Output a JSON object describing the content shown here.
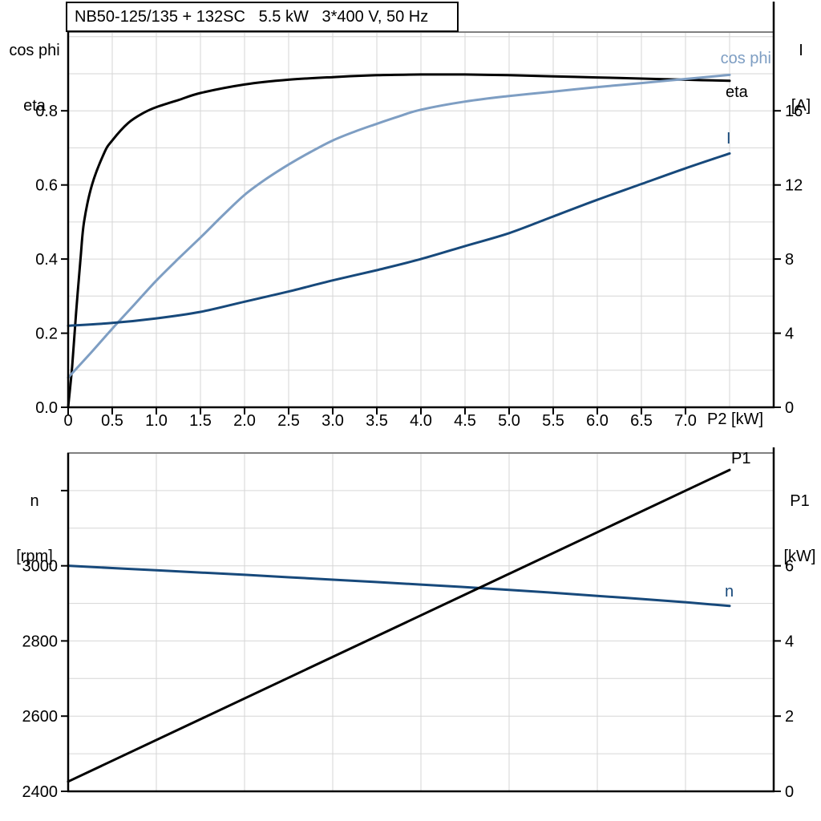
{
  "title": "NB50-125/135 + 132SC   5.5 kW   3*400 V, 50 Hz",
  "x_axis_label": "P2 [kW]",
  "colors": {
    "black": "#000000",
    "light_blue": "#7e9ec3",
    "dark_blue": "#17497b",
    "grid": "#d6d6d6",
    "frame_gray": "#808080",
    "text": "#000000",
    "background": "#ffffff"
  },
  "axis_titles": {
    "top_left_1": "cos phi",
    "top_left_2": "eta",
    "top_right_1": "I",
    "top_right_2": "[A]",
    "bottom_left_1": "n",
    "bottom_left_2": "[rpm]",
    "bottom_right_1": "P1",
    "bottom_right_2": "[kW]"
  },
  "curve_labels": {
    "cos_phi": "cos phi",
    "eta": "eta",
    "current": "I",
    "p1": "P1",
    "n": "n"
  },
  "chart_data": [
    {
      "type": "line",
      "title": "NB50-125/135 + 132SC   5.5 kW   3*400 V, 50 Hz",
      "xlabel": "P2 [kW]",
      "xlim": [
        0,
        8
      ],
      "ylim_left": [
        0,
        1.0125
      ],
      "ylim_right": [
        0,
        20.25
      ],
      "grid": true,
      "grid_x": [
        0.5,
        1,
        1.5,
        2,
        2.5,
        3,
        3.5,
        4,
        4.5,
        5,
        5.5,
        6,
        6.5,
        7,
        7.5
      ],
      "grid_y_left": [
        0.1,
        0.2,
        0.3,
        0.4,
        0.5,
        0.6,
        0.7,
        0.8,
        0.9,
        1.0
      ],
      "x_ticks": {
        "values": [
          0,
          0.5,
          1,
          1.5,
          2,
          2.5,
          3,
          3.5,
          4,
          4.5,
          5,
          5.5,
          6,
          6.5,
          7
        ],
        "labels": [
          "0",
          "0.5",
          "1.0",
          "1.5",
          "2.0",
          "2.5",
          "3.0",
          "3.5",
          "4.0",
          "4.5",
          "5.0",
          "5.5",
          "6.0",
          "6.5",
          "7.0"
        ]
      },
      "y_left_ticks": {
        "values": [
          0,
          0.2,
          0.4,
          0.6,
          0.8
        ],
        "labels": [
          "0.0",
          "0.2",
          "0.4",
          "0.6",
          "0.8"
        ],
        "extra_unlabeled": []
      },
      "y_right_ticks": {
        "values": [
          0,
          4,
          8,
          12,
          16
        ],
        "labels": [
          "0",
          "4",
          "8",
          "12",
          "16"
        ],
        "extra_unlabeled": []
      },
      "series": [
        {
          "key": "eta",
          "name": "eta",
          "axis": "left",
          "color": "black",
          "x": [
            0,
            0.045,
            0.09,
            0.14,
            0.18,
            0.27,
            0.41,
            0.5,
            0.68,
            0.86,
            1.0,
            1.25,
            1.5,
            2.0,
            2.5,
            3.0,
            3.5,
            4.0,
            4.5,
            5.0,
            5.5,
            6.0,
            6.5,
            7.0,
            7.5
          ],
          "y": [
            0,
            0.11,
            0.255,
            0.4,
            0.5,
            0.6,
            0.687,
            0.72,
            0.767,
            0.795,
            0.81,
            0.829,
            0.848,
            0.871,
            0.884,
            0.891,
            0.896,
            0.898,
            0.898,
            0.896,
            0.893,
            0.89,
            0.887,
            0.884,
            0.881
          ]
        },
        {
          "key": "cos-phi",
          "name": "cos phi",
          "axis": "left",
          "color": "light_blue",
          "x": [
            0,
            0.25,
            0.5,
            0.75,
            1.0,
            1.25,
            1.5,
            1.75,
            2.0,
            2.25,
            2.5,
            2.75,
            3.0,
            3.25,
            3.5,
            3.75,
            4.0,
            4.5,
            5.0,
            5.5,
            6.0,
            6.5,
            7.0,
            7.5
          ],
          "y": [
            0.08,
            0.145,
            0.212,
            0.277,
            0.342,
            0.401,
            0.458,
            0.517,
            0.573,
            0.617,
            0.655,
            0.689,
            0.72,
            0.744,
            0.765,
            0.785,
            0.803,
            0.825,
            0.84,
            0.852,
            0.864,
            0.875,
            0.886,
            0.897
          ]
        },
        {
          "key": "current",
          "name": "I",
          "axis": "right",
          "color": "dark_blue",
          "x": [
            0,
            0.5,
            1,
            1.5,
            2,
            2.5,
            3,
            3.5,
            4,
            4.5,
            5,
            5.5,
            6,
            6.5,
            7,
            7.5
          ],
          "y": [
            4.4,
            4.55,
            4.8,
            5.15,
            5.7,
            6.25,
            6.85,
            7.4,
            8.0,
            8.7,
            9.4,
            10.3,
            11.2,
            12.05,
            12.9,
            13.7
          ]
        }
      ]
    },
    {
      "type": "line",
      "xlabel": "",
      "xlim": [
        0,
        8
      ],
      "ylim_left": [
        2400,
        3300
      ],
      "ylim_right": [
        0,
        9
      ],
      "grid": true,
      "grid_x": [
        1,
        2,
        3,
        4,
        5,
        6,
        7
      ],
      "grid_y_left": [
        2500,
        2600,
        2700,
        2800,
        2900,
        3000,
        3100,
        3200
      ],
      "x_ticks": {
        "values": [],
        "labels": []
      },
      "y_left_ticks": {
        "values": [
          2400,
          2600,
          2800,
          3000
        ],
        "labels": [
          "2400",
          "2600",
          "2800",
          "3000"
        ],
        "extra_unlabeled": [
          3200
        ]
      },
      "y_right_ticks": {
        "values": [
          0,
          2,
          4,
          6
        ],
        "labels": [
          "0",
          "2",
          "4",
          "6"
        ],
        "extra_unlabeled": []
      },
      "series": [
        {
          "key": "speed",
          "name": "n",
          "axis": "left",
          "color": "dark_blue",
          "x": [
            0,
            1,
            2,
            3,
            4,
            5,
            6,
            7,
            7.5
          ],
          "y": [
            3000,
            2988,
            2976,
            2963,
            2950,
            2936,
            2920,
            2903,
            2893
          ]
        },
        {
          "key": "p1",
          "name": "P1",
          "axis": "right",
          "color": "black",
          "x": [
            0,
            7.5
          ],
          "y": [
            0.26,
            8.55
          ]
        }
      ]
    }
  ]
}
